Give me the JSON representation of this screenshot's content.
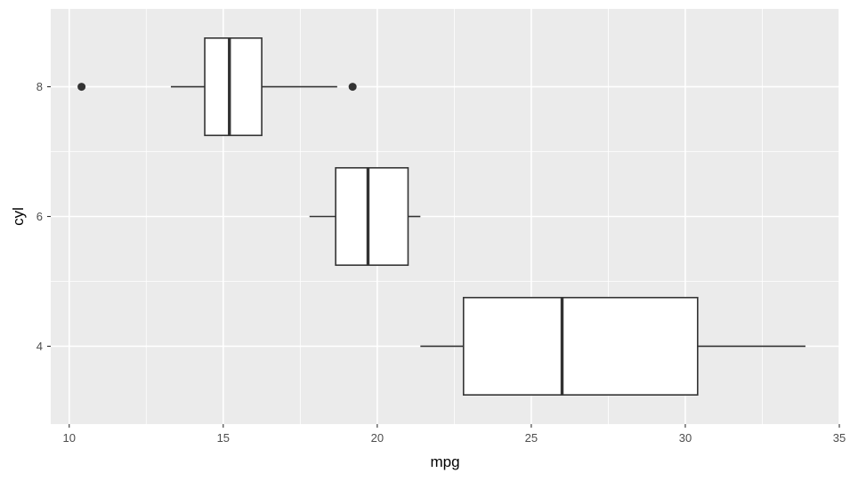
{
  "chart_data": {
    "type": "boxplot",
    "orientation": "horizontal",
    "xlabel": "mpg",
    "ylabel": "cyl",
    "xlim": [
      9.4,
      35.0
    ],
    "ylim": [
      2.8,
      9.2
    ],
    "x_ticks": [
      10,
      15,
      20,
      25,
      30,
      35
    ],
    "y_ticks": [
      4,
      6,
      8
    ],
    "grid": true,
    "background": "#ebebeb",
    "box_fill": "#ffffff",
    "line_color": "#333333",
    "boxes": [
      {
        "cyl": 4,
        "lower_whisker": 21.4,
        "q1": 22.8,
        "median": 26.0,
        "q3": 30.4,
        "upper_whisker": 33.9,
        "outliers": []
      },
      {
        "cyl": 6,
        "lower_whisker": 17.8,
        "q1": 18.65,
        "median": 19.7,
        "q3": 21.0,
        "upper_whisker": 21.4,
        "outliers": []
      },
      {
        "cyl": 8,
        "lower_whisker": 13.3,
        "q1": 14.4,
        "median": 15.2,
        "q3": 16.25,
        "upper_whisker": 18.7,
        "outliers": [
          10.4,
          19.2
        ]
      }
    ]
  }
}
